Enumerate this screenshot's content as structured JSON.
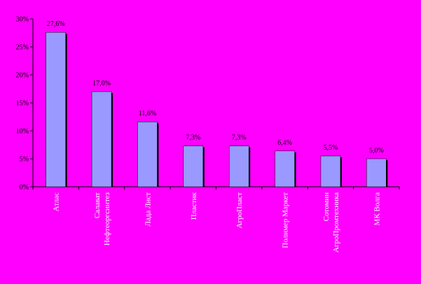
{
  "colors": {
    "background": "#ff00ff",
    "bar": "#9999ff",
    "bar_shadow": "#000000",
    "axis": "#000000",
    "category_text": "#ffffff"
  },
  "chart_data": {
    "type": "bar",
    "categories": [
      "Атлас",
      [
        "Салават",
        "Нефтеоргсинтез"
      ],
      "Лада Лист",
      "Пластик",
      "АгроПласт",
      "Полимер Маркет",
      [
        "Сотомин",
        "АгроПромтехника"
      ],
      "МК Волга"
    ],
    "values": [
      27.6,
      17.0,
      11.6,
      7.3,
      7.3,
      6.4,
      5.5,
      5.0
    ],
    "value_labels": [
      "27,6%",
      "17,0%",
      "11,6%",
      "7,3%",
      "7,3%",
      "6,4%",
      "5,5%",
      "5,0%"
    ],
    "y_ticks": [
      0,
      5,
      10,
      15,
      20,
      25,
      30
    ],
    "y_tick_labels": [
      "0%",
      "5%",
      "10%",
      "15%",
      "20%",
      "25%",
      "30%"
    ],
    "ylim": [
      0,
      30
    ],
    "grid": false,
    "legend": "none",
    "title": "",
    "xlabel": "",
    "ylabel": ""
  }
}
